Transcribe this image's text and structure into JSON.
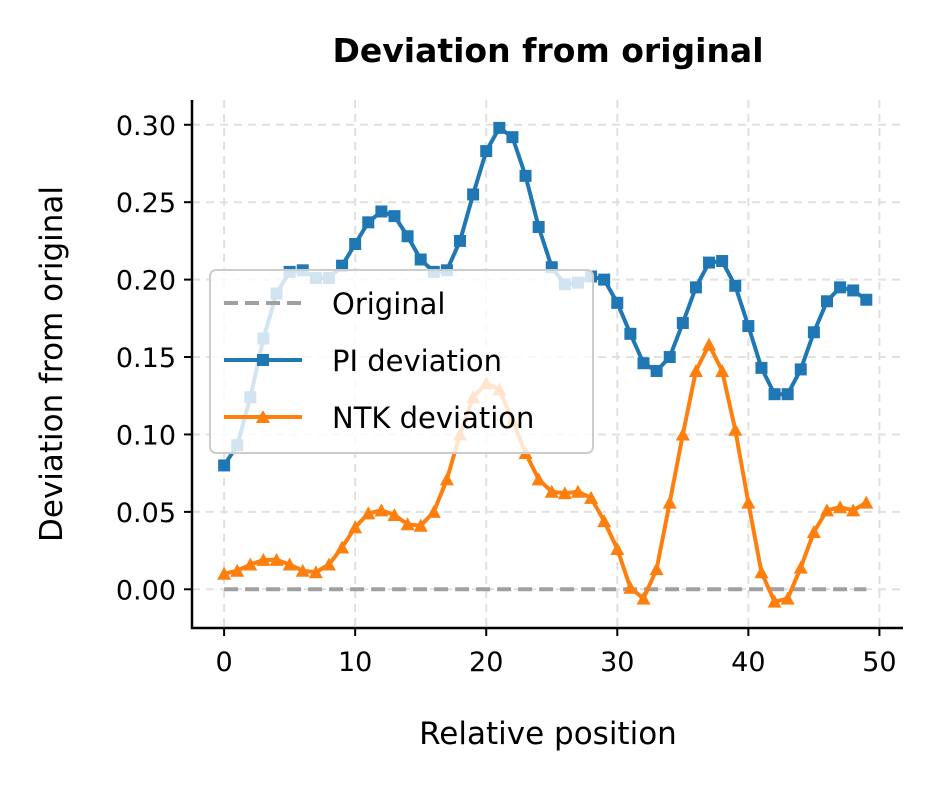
{
  "chart_data": {
    "type": "line",
    "title": "Deviation from original",
    "xlabel": "Relative position",
    "ylabel": "Deviation from original",
    "xlim": [
      -2.45,
      51.8
    ],
    "ylim": [
      -0.025,
      0.316
    ],
    "xticks": [
      0,
      10,
      20,
      30,
      40,
      50
    ],
    "xtick_labels": [
      "0",
      "10",
      "20",
      "30",
      "40",
      "50"
    ],
    "yticks": [
      0,
      0.05,
      0.1,
      0.15,
      0.2,
      0.25,
      0.3
    ],
    "ytick_labels": [
      "0.00",
      "0.05",
      "0.10",
      "0.15",
      "0.20",
      "0.25",
      "0.30"
    ],
    "grid": true,
    "legend_position": "center-left",
    "x": [
      0,
      1,
      2,
      3,
      4,
      5,
      6,
      7,
      8,
      9,
      10,
      11,
      12,
      13,
      14,
      15,
      16,
      17,
      18,
      19,
      20,
      21,
      22,
      23,
      24,
      25,
      26,
      27,
      28,
      29,
      30,
      31,
      32,
      33,
      34,
      35,
      36,
      37,
      38,
      39,
      40,
      41,
      42,
      43,
      44,
      45,
      46,
      47,
      48,
      49
    ],
    "series": [
      {
        "name": "Original",
        "color": "#a0a0a0",
        "style": "dashed",
        "marker": "none",
        "values": [
          0,
          0,
          0,
          0,
          0,
          0,
          0,
          0,
          0,
          0,
          0,
          0,
          0,
          0,
          0,
          0,
          0,
          0,
          0,
          0,
          0,
          0,
          0,
          0,
          0,
          0,
          0,
          0,
          0,
          0,
          0,
          0,
          0,
          0,
          0,
          0,
          0,
          0,
          0,
          0,
          0,
          0,
          0,
          0,
          0,
          0,
          0,
          0,
          0,
          0
        ]
      },
      {
        "name": "PI deviation",
        "color": "#1f77b4",
        "style": "solid",
        "marker": "square",
        "values": [
          0.08,
          0.093,
          0.124,
          0.162,
          0.191,
          0.205,
          0.206,
          0.201,
          0.201,
          0.209,
          0.223,
          0.237,
          0.244,
          0.241,
          0.228,
          0.213,
          0.205,
          0.206,
          0.225,
          0.255,
          0.283,
          0.298,
          0.292,
          0.267,
          0.234,
          0.208,
          0.197,
          0.198,
          0.202,
          0.2,
          0.185,
          0.165,
          0.146,
          0.141,
          0.15,
          0.172,
          0.195,
          0.211,
          0.212,
          0.196,
          0.17,
          0.143,
          0.126,
          0.126,
          0.142,
          0.166,
          0.186,
          0.195,
          0.193,
          0.187
        ]
      },
      {
        "name": "NTK deviation",
        "color": "#ff7f0e",
        "style": "solid",
        "marker": "triangle",
        "values": [
          0.01,
          0.012,
          0.016,
          0.019,
          0.019,
          0.016,
          0.012,
          0.011,
          0.016,
          0.027,
          0.04,
          0.049,
          0.051,
          0.048,
          0.042,
          0.041,
          0.05,
          0.071,
          0.1,
          0.124,
          0.133,
          0.129,
          0.109,
          0.088,
          0.071,
          0.063,
          0.062,
          0.063,
          0.059,
          0.044,
          0.026,
          0.001,
          -0.006,
          0.013,
          0.056,
          0.1,
          0.141,
          0.158,
          0.141,
          0.103,
          0.056,
          0.011,
          -0.008,
          -0.006,
          0.014,
          0.037,
          0.051,
          0.053,
          0.051,
          0.056
        ]
      }
    ]
  }
}
